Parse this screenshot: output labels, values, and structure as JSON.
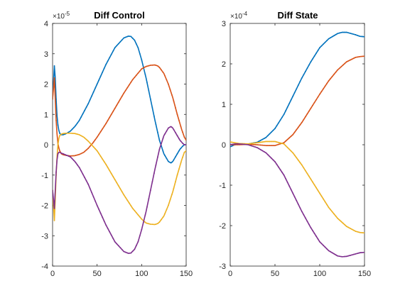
{
  "chart_data": [
    {
      "type": "line",
      "title": "Diff Control",
      "xlabel": "",
      "ylabel": "",
      "y_exponent_label": "×10",
      "y_exponent_power": "-5",
      "xlim": [
        0,
        150
      ],
      "ylim": [
        -4,
        4
      ],
      "xticks": [
        0,
        50,
        100,
        150
      ],
      "yticks": [
        -4,
        -3,
        -2,
        -1,
        0,
        1,
        2,
        3,
        4
      ],
      "grid": false,
      "legend": "none",
      "markers": true,
      "series": [
        {
          "color": "#0072BD",
          "x": [
            0,
            2,
            3,
            4,
            5,
            6,
            7,
            8,
            9,
            10,
            12,
            14,
            16,
            20,
            25,
            30,
            40,
            50,
            60,
            70,
            80,
            85,
            88,
            92,
            96,
            100,
            105,
            110,
            115,
            120,
            125,
            130,
            133,
            135,
            137,
            140,
            143,
            146,
            148,
            150
          ],
          "y": [
            1.5,
            2.6,
            2.2,
            1.5,
            0.95,
            0.65,
            0.48,
            0.38,
            0.34,
            0.33,
            0.33,
            0.35,
            0.38,
            0.45,
            0.6,
            0.8,
            1.35,
            2.0,
            2.65,
            3.2,
            3.52,
            3.58,
            3.57,
            3.45,
            3.2,
            2.8,
            2.2,
            1.5,
            0.8,
            0.15,
            -0.3,
            -0.55,
            -0.6,
            -0.55,
            -0.45,
            -0.3,
            -0.15,
            -0.05,
            0.0,
            0.0
          ]
        },
        {
          "color": "#D95319",
          "x": [
            0,
            2,
            3,
            4,
            5,
            6,
            7,
            8,
            10,
            12,
            15,
            20,
            25,
            30,
            35,
            40,
            45,
            50,
            60,
            70,
            80,
            90,
            100,
            105,
            110,
            115,
            118,
            120,
            125,
            130,
            135,
            140,
            145,
            148,
            150
          ],
          "y": [
            1.5,
            2.2,
            1.5,
            0.8,
            0.35,
            0.05,
            -0.1,
            -0.2,
            -0.3,
            -0.33,
            -0.35,
            -0.37,
            -0.36,
            -0.32,
            -0.25,
            -0.12,
            0.05,
            0.25,
            0.7,
            1.2,
            1.7,
            2.15,
            2.5,
            2.58,
            2.62,
            2.63,
            2.6,
            2.55,
            2.35,
            2.0,
            1.55,
            1.0,
            0.5,
            0.25,
            0.15
          ]
        },
        {
          "color": "#EDB120",
          "x": [
            0,
            2,
            3,
            4,
            5,
            6,
            7,
            8,
            10,
            12,
            15,
            20,
            25,
            30,
            35,
            40,
            50,
            60,
            70,
            80,
            90,
            100,
            105,
            110,
            115,
            118,
            120,
            125,
            130,
            135,
            140,
            145,
            148,
            150
          ],
          "y": [
            -1.5,
            -2.5,
            -1.8,
            -1.0,
            -0.4,
            0.0,
            0.2,
            0.3,
            0.35,
            0.37,
            0.38,
            0.38,
            0.37,
            0.33,
            0.25,
            0.12,
            -0.2,
            -0.65,
            -1.15,
            -1.65,
            -2.1,
            -2.45,
            -2.58,
            -2.62,
            -2.63,
            -2.6,
            -2.55,
            -2.35,
            -2.0,
            -1.55,
            -1.0,
            -0.5,
            -0.25,
            -0.2
          ]
        },
        {
          "color": "#7E2F8E",
          "x": [
            0,
            2,
            3,
            4,
            5,
            6,
            7,
            8,
            10,
            12,
            16,
            20,
            25,
            30,
            40,
            50,
            60,
            70,
            80,
            85,
            88,
            92,
            96,
            100,
            105,
            110,
            115,
            120,
            125,
            130,
            133,
            135,
            137,
            140,
            143,
            146,
            148,
            150
          ],
          "y": [
            -1.5,
            -2.1,
            -1.5,
            -0.9,
            -0.5,
            -0.3,
            -0.25,
            -0.25,
            -0.28,
            -0.3,
            -0.35,
            -0.4,
            -0.55,
            -0.75,
            -1.3,
            -2.0,
            -2.65,
            -3.2,
            -3.52,
            -3.58,
            -3.57,
            -3.45,
            -3.2,
            -2.8,
            -2.2,
            -1.5,
            -0.8,
            -0.15,
            0.3,
            0.55,
            0.6,
            0.55,
            0.45,
            0.3,
            0.15,
            0.05,
            0.0,
            0.0
          ]
        }
      ]
    },
    {
      "type": "line",
      "title": "Diff State",
      "xlabel": "",
      "ylabel": "",
      "y_exponent_label": "×10",
      "y_exponent_power": "-4",
      "xlim": [
        0,
        150
      ],
      "ylim": [
        -3,
        3
      ],
      "xticks": [
        0,
        50,
        100,
        150
      ],
      "yticks": [
        -3,
        -2,
        -1,
        0,
        1,
        2,
        3
      ],
      "grid": false,
      "legend": "none",
      "markers": true,
      "series": [
        {
          "color": "#0072BD",
          "x": [
            0,
            5,
            10,
            20,
            30,
            40,
            50,
            60,
            70,
            80,
            90,
            100,
            110,
            120,
            125,
            130,
            135,
            140,
            145,
            150
          ],
          "y": [
            -0.05,
            0.0,
            0.01,
            0.02,
            0.06,
            0.18,
            0.4,
            0.75,
            1.2,
            1.65,
            2.05,
            2.4,
            2.62,
            2.75,
            2.78,
            2.78,
            2.75,
            2.72,
            2.68,
            2.67
          ]
        },
        {
          "color": "#D95319",
          "x": [
            0,
            5,
            10,
            20,
            30,
            40,
            50,
            60,
            70,
            80,
            90,
            100,
            110,
            120,
            130,
            140,
            145,
            150
          ],
          "y": [
            0.0,
            0.0,
            0.0,
            0.01,
            0.0,
            -0.02,
            -0.02,
            0.05,
            0.25,
            0.55,
            0.9,
            1.25,
            1.58,
            1.85,
            2.05,
            2.16,
            2.18,
            2.19
          ]
        },
        {
          "color": "#EDB120",
          "x": [
            0,
            5,
            10,
            20,
            30,
            40,
            50,
            60,
            70,
            80,
            90,
            100,
            110,
            120,
            130,
            140,
            145,
            150
          ],
          "y": [
            0.07,
            0.05,
            0.03,
            0.02,
            0.05,
            0.08,
            0.08,
            0.02,
            -0.2,
            -0.5,
            -0.85,
            -1.2,
            -1.55,
            -1.82,
            -2.02,
            -2.14,
            -2.17,
            -2.18
          ]
        },
        {
          "color": "#7E2F8E",
          "x": [
            0,
            5,
            10,
            20,
            30,
            40,
            50,
            60,
            70,
            80,
            90,
            100,
            110,
            120,
            125,
            130,
            135,
            140,
            145,
            150
          ],
          "y": [
            0.0,
            0.02,
            0.02,
            0.0,
            -0.07,
            -0.2,
            -0.42,
            -0.75,
            -1.2,
            -1.65,
            -2.05,
            -2.4,
            -2.62,
            -2.75,
            -2.77,
            -2.76,
            -2.73,
            -2.7,
            -2.67,
            -2.66
          ]
        }
      ]
    }
  ]
}
